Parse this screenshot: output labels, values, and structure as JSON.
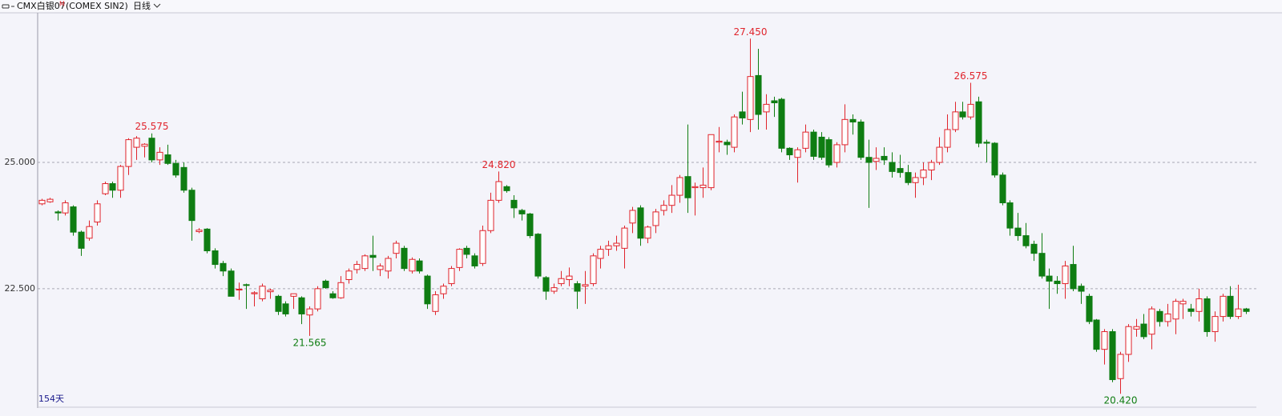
{
  "header": {
    "symbol": "CMX白银07",
    "flag": "M",
    "code": "(COMEX SIN2)",
    "period": "日线"
  },
  "chart_data": {
    "type": "candlestick",
    "day_count_label": "154天",
    "up_color": "#e0242c",
    "down_color": "#0f7d12",
    "ylim": [
      20.17,
      27.93
    ],
    "yticks": [
      {
        "value": 22.5,
        "label": "22.500"
      },
      {
        "value": 25,
        "label": "25.000"
      }
    ],
    "grid": true,
    "high_labels": [
      {
        "value": 25.575,
        "label": "25.575"
      },
      {
        "value": 24.82,
        "label": "24.820"
      },
      {
        "value": 27.45,
        "label": "27.450"
      },
      {
        "value": 26.575,
        "label": "26.575"
      }
    ],
    "low_labels": [
      {
        "value": 21.565,
        "label": "21.565"
      },
      {
        "value": 20.42,
        "label": "20.420"
      }
    ],
    "ohlc": [
      [
        24.18,
        24.28,
        24.15,
        24.25
      ],
      [
        24.22,
        24.3,
        24.2,
        24.27
      ],
      [
        24.02,
        24.05,
        23.85,
        24.0
      ],
      [
        24.0,
        24.25,
        23.95,
        24.2
      ],
      [
        24.12,
        24.15,
        23.55,
        23.62
      ],
      [
        23.62,
        23.65,
        23.15,
        23.3
      ],
      [
        23.5,
        23.85,
        23.45,
        23.73
      ],
      [
        23.82,
        24.25,
        23.75,
        24.18
      ],
      [
        24.38,
        24.62,
        24.35,
        24.58
      ],
      [
        24.58,
        24.62,
        24.3,
        24.45
      ],
      [
        24.45,
        24.95,
        24.3,
        24.92
      ],
      [
        24.92,
        25.48,
        24.75,
        25.45
      ],
      [
        25.3,
        25.52,
        25.05,
        25.48
      ],
      [
        25.32,
        25.38,
        25.1,
        25.36
      ],
      [
        25.48,
        25.575,
        25.0,
        25.05
      ],
      [
        25.05,
        25.3,
        24.95,
        25.2
      ],
      [
        25.15,
        25.35,
        24.95,
        24.98
      ],
      [
        24.98,
        25.05,
        24.7,
        24.75
      ],
      [
        24.9,
        25.0,
        24.4,
        24.45
      ],
      [
        24.45,
        24.5,
        23.45,
        23.85
      ],
      [
        23.63,
        23.7,
        23.6,
        23.66
      ],
      [
        23.68,
        23.7,
        23.2,
        23.25
      ],
      [
        23.25,
        23.3,
        22.9,
        22.98
      ],
      [
        23.0,
        23.05,
        22.75,
        22.85
      ],
      [
        22.85,
        22.9,
        22.35,
        22.35
      ],
      [
        22.48,
        22.62,
        22.28,
        22.49
      ],
      [
        22.58,
        22.6,
        22.1,
        22.57
      ],
      [
        22.4,
        22.45,
        22.15,
        22.42
      ],
      [
        22.3,
        22.6,
        22.25,
        22.55
      ],
      [
        22.44,
        22.5,
        22.3,
        22.47
      ],
      [
        22.35,
        22.38,
        21.98,
        22.05
      ],
      [
        22.2,
        22.25,
        21.95,
        22.0
      ],
      [
        22.35,
        22.4,
        22.1,
        22.4
      ],
      [
        22.32,
        22.35,
        21.8,
        22.0
      ],
      [
        21.98,
        22.15,
        21.565,
        22.1
      ],
      [
        22.1,
        22.55,
        22.05,
        22.5
      ],
      [
        22.65,
        22.68,
        22.5,
        22.52
      ],
      [
        22.4,
        22.45,
        22.3,
        22.32
      ],
      [
        22.32,
        22.75,
        22.3,
        22.62
      ],
      [
        22.68,
        22.9,
        22.6,
        22.85
      ],
      [
        22.88,
        23.05,
        22.8,
        22.98
      ],
      [
        22.9,
        23.18,
        22.85,
        23.15
      ],
      [
        23.16,
        23.55,
        22.85,
        23.12
      ],
      [
        22.88,
        23.0,
        22.75,
        22.95
      ],
      [
        22.85,
        23.15,
        22.7,
        23.1
      ],
      [
        23.2,
        23.45,
        23.1,
        23.4
      ],
      [
        23.3,
        23.35,
        22.85,
        22.9
      ],
      [
        22.85,
        23.12,
        22.8,
        23.08
      ],
      [
        23.05,
        23.1,
        22.8,
        22.85
      ],
      [
        22.75,
        22.78,
        22.1,
        22.2
      ],
      [
        22.05,
        22.45,
        21.98,
        22.38
      ],
      [
        22.4,
        22.6,
        22.3,
        22.55
      ],
      [
        22.6,
        22.95,
        22.55,
        22.9
      ],
      [
        22.92,
        23.3,
        22.85,
        23.28
      ],
      [
        23.3,
        23.35,
        23.1,
        23.18
      ],
      [
        23.15,
        23.2,
        22.9,
        22.95
      ],
      [
        23.0,
        23.75,
        22.95,
        23.65
      ],
      [
        23.65,
        24.4,
        23.6,
        24.25
      ],
      [
        24.25,
        24.82,
        24.2,
        24.62
      ],
      [
        24.52,
        24.55,
        24.4,
        24.44
      ],
      [
        24.25,
        24.35,
        23.9,
        24.1
      ],
      [
        24.05,
        24.08,
        23.85,
        23.98
      ],
      [
        23.98,
        24.0,
        23.5,
        23.55
      ],
      [
        23.58,
        23.6,
        22.7,
        22.75
      ],
      [
        22.72,
        22.75,
        22.28,
        22.45
      ],
      [
        22.45,
        22.6,
        22.4,
        22.52
      ],
      [
        22.6,
        22.85,
        22.55,
        22.7
      ],
      [
        22.68,
        22.92,
        22.55,
        22.75
      ],
      [
        22.6,
        22.65,
        22.1,
        22.45
      ],
      [
        22.55,
        22.85,
        22.2,
        22.58
      ],
      [
        22.6,
        23.2,
        22.55,
        23.15
      ],
      [
        23.1,
        23.35,
        22.9,
        23.28
      ],
      [
        23.28,
        23.45,
        23.15,
        23.35
      ],
      [
        23.35,
        23.55,
        23.25,
        23.4
      ],
      [
        23.3,
        23.75,
        22.9,
        23.7
      ],
      [
        23.8,
        24.12,
        23.6,
        24.05
      ],
      [
        24.1,
        24.15,
        23.35,
        23.5
      ],
      [
        23.5,
        23.75,
        23.4,
        23.72
      ],
      [
        23.75,
        24.08,
        23.6,
        24.02
      ],
      [
        24.05,
        24.25,
        23.95,
        24.15
      ],
      [
        24.15,
        24.55,
        24.0,
        24.35
      ],
      [
        24.35,
        24.75,
        24.2,
        24.7
      ],
      [
        24.72,
        25.75,
        24.0,
        24.3
      ],
      [
        24.5,
        24.6,
        23.95,
        24.52
      ],
      [
        24.5,
        24.9,
        24.3,
        24.55
      ],
      [
        24.5,
        25.55,
        24.45,
        25.55
      ],
      [
        25.4,
        25.7,
        25.2,
        25.42
      ],
      [
        25.4,
        25.45,
        25.15,
        25.35
      ],
      [
        25.3,
        25.95,
        25.2,
        25.9
      ],
      [
        26.0,
        26.4,
        25.75,
        25.88
      ],
      [
        25.85,
        27.45,
        25.6,
        26.7
      ],
      [
        26.72,
        27.25,
        25.65,
        25.95
      ],
      [
        26.0,
        26.35,
        25.65,
        26.15
      ],
      [
        26.22,
        26.3,
        25.9,
        26.18
      ],
      [
        26.25,
        26.28,
        25.2,
        25.28
      ],
      [
        25.28,
        25.3,
        25.05,
        25.15
      ],
      [
        25.1,
        25.3,
        24.6,
        25.25
      ],
      [
        25.28,
        25.75,
        25.2,
        25.6
      ],
      [
        25.6,
        25.65,
        25.05,
        25.12
      ],
      [
        25.5,
        25.6,
        25.05,
        25.1
      ],
      [
        25.45,
        25.5,
        24.9,
        24.95
      ],
      [
        25.0,
        25.4,
        24.9,
        25.35
      ],
      [
        25.35,
        26.15,
        25.2,
        25.85
      ],
      [
        25.85,
        25.95,
        25.55,
        25.8
      ],
      [
        25.8,
        25.85,
        25.05,
        25.1
      ],
      [
        25.1,
        25.45,
        24.1,
        25.0
      ],
      [
        25.02,
        25.3,
        24.85,
        25.08
      ],
      [
        25.12,
        25.3,
        24.95,
        25.05
      ],
      [
        25.0,
        25.2,
        24.7,
        24.82
      ],
      [
        24.88,
        25.15,
        24.7,
        24.8
      ],
      [
        24.8,
        24.95,
        24.55,
        24.6
      ],
      [
        24.6,
        24.8,
        24.3,
        24.7
      ],
      [
        24.7,
        25.0,
        24.55,
        24.85
      ],
      [
        24.85,
        25.05,
        24.65,
        25.0
      ],
      [
        25.0,
        25.5,
        24.95,
        25.3
      ],
      [
        25.3,
        25.95,
        25.2,
        25.65
      ],
      [
        25.65,
        26.2,
        25.6,
        26.0
      ],
      [
        26.0,
        26.2,
        25.85,
        25.9
      ],
      [
        25.9,
        26.575,
        25.85,
        26.15
      ],
      [
        26.2,
        26.3,
        25.3,
        25.38
      ],
      [
        25.4,
        25.45,
        25.0,
        25.38
      ],
      [
        25.38,
        25.4,
        24.7,
        24.75
      ],
      [
        24.75,
        24.8,
        24.15,
        24.2
      ],
      [
        24.2,
        24.25,
        23.55,
        23.7
      ],
      [
        23.7,
        24.0,
        23.45,
        23.55
      ],
      [
        23.55,
        23.8,
        23.3,
        23.35
      ],
      [
        23.38,
        23.45,
        23.05,
        23.2
      ],
      [
        23.2,
        23.6,
        22.7,
        22.75
      ],
      [
        22.75,
        22.9,
        22.1,
        22.65
      ],
      [
        22.65,
        22.75,
        22.4,
        22.6
      ],
      [
        22.6,
        23.05,
        22.3,
        22.95
      ],
      [
        22.98,
        23.35,
        22.45,
        22.5
      ],
      [
        22.55,
        22.6,
        22.2,
        22.45
      ],
      [
        22.35,
        22.4,
        21.8,
        21.85
      ],
      [
        21.88,
        21.9,
        21.25,
        21.3
      ],
      [
        21.3,
        21.7,
        21.0,
        21.65
      ],
      [
        21.65,
        21.7,
        20.65,
        20.7
      ],
      [
        20.72,
        21.25,
        20.42,
        21.2
      ],
      [
        21.2,
        21.8,
        21.05,
        21.75
      ],
      [
        21.7,
        21.9,
        21.55,
        21.75
      ],
      [
        21.8,
        22.0,
        21.5,
        21.55
      ],
      [
        21.6,
        22.15,
        21.3,
        22.1
      ],
      [
        22.05,
        22.1,
        21.75,
        21.85
      ],
      [
        21.85,
        22.2,
        21.75,
        22.0
      ],
      [
        21.9,
        22.3,
        21.6,
        22.25
      ],
      [
        22.2,
        22.3,
        21.9,
        22.25
      ],
      [
        22.1,
        22.2,
        21.95,
        22.05
      ],
      [
        22.05,
        22.5,
        21.85,
        22.3
      ],
      [
        22.3,
        22.35,
        21.55,
        21.65
      ],
      [
        21.65,
        22.05,
        21.45,
        21.95
      ],
      [
        21.95,
        22.4,
        21.85,
        22.35
      ],
      [
        22.35,
        22.55,
        21.9,
        21.95
      ],
      [
        21.95,
        22.58,
        21.9,
        22.1
      ],
      [
        22.1,
        22.12,
        22.0,
        22.05
      ]
    ]
  }
}
